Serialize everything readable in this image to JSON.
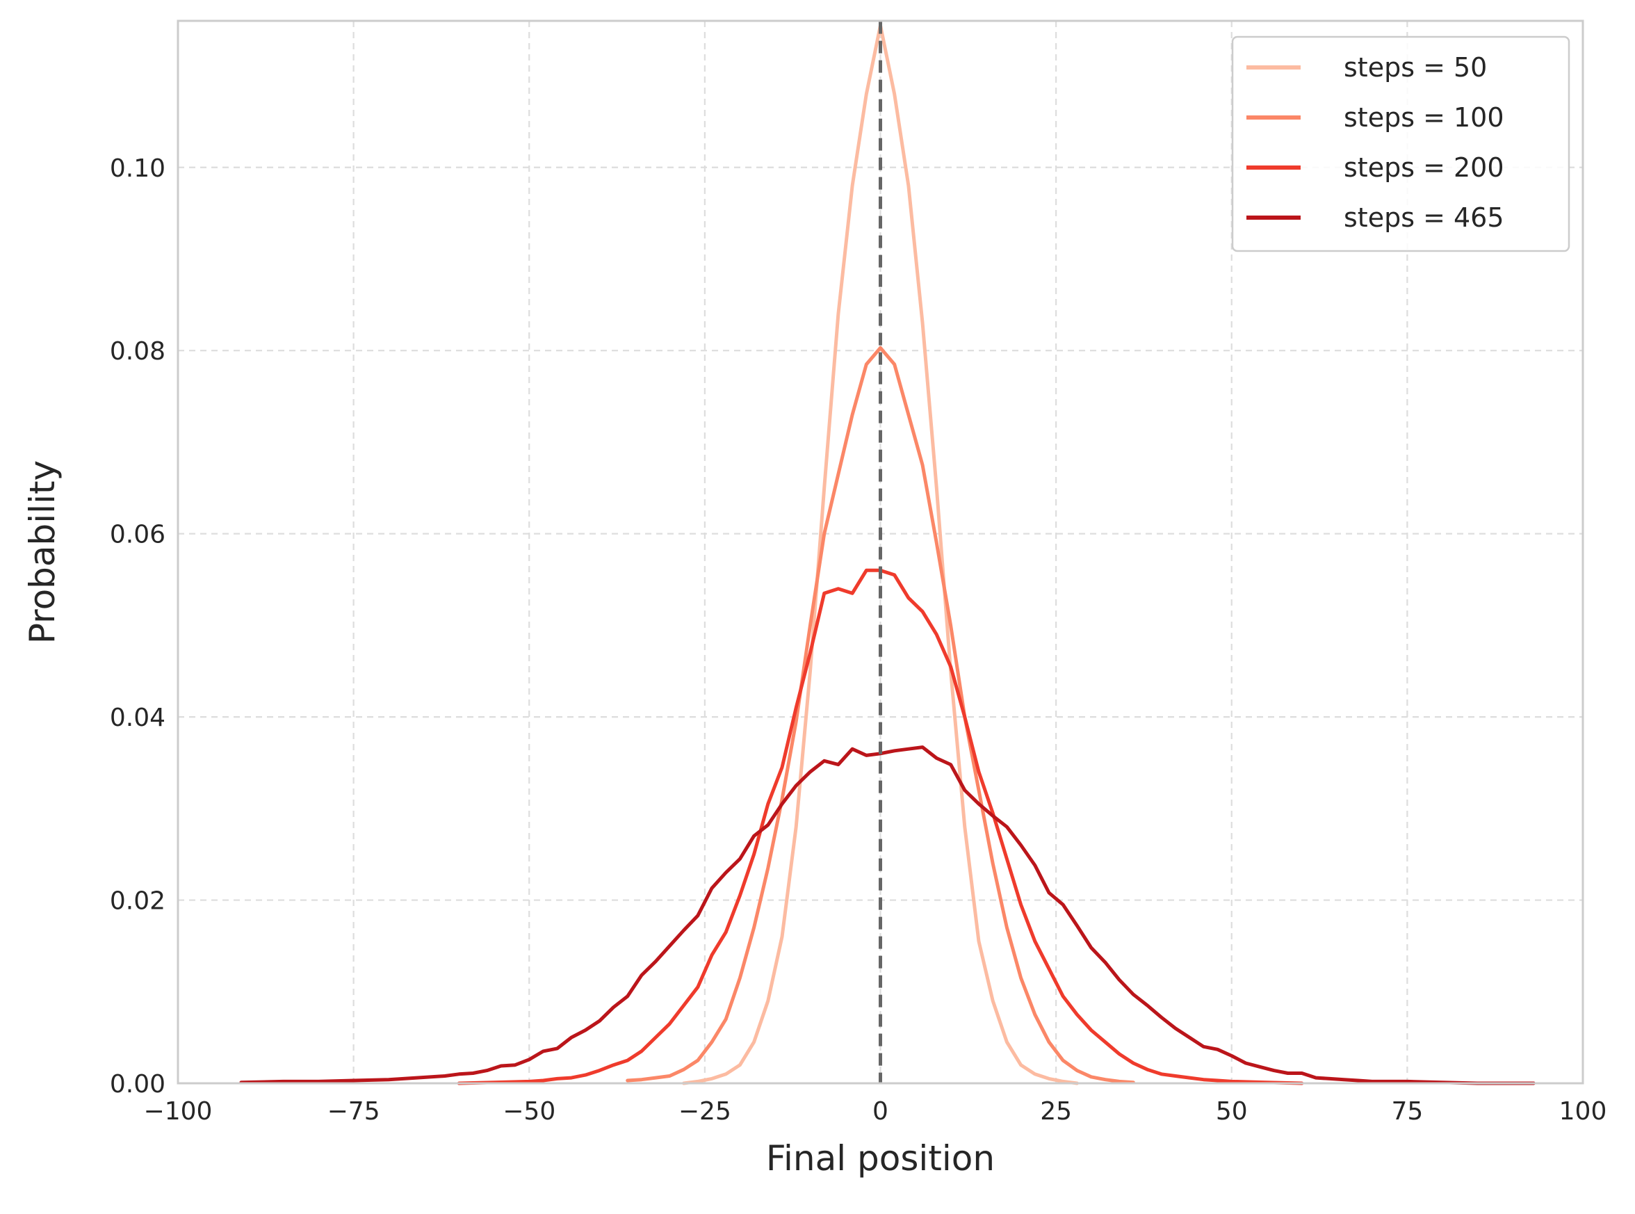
{
  "chart_data": {
    "type": "line",
    "title": "",
    "xlabel": "Final position",
    "ylabel": "Probability",
    "xlim": [
      -100,
      100
    ],
    "ylim": [
      0,
      0.116
    ],
    "xticks": [
      -100,
      -75,
      -50,
      -25,
      0,
      25,
      50,
      75,
      100
    ],
    "xtick_labels": [
      "−100",
      "−75",
      "−50",
      "−25",
      "0",
      "25",
      "50",
      "75",
      "100"
    ],
    "yticks": [
      0,
      0.02,
      0.04,
      0.06,
      0.08,
      0.1
    ],
    "ytick_labels": [
      "0.00",
      "0.02",
      "0.04",
      "0.06",
      "0.08",
      "0.10"
    ],
    "grid": true,
    "legend_position": "top-right",
    "reference_line": {
      "x": 0,
      "style": "dashed",
      "color": "#666666"
    },
    "series": [
      {
        "name": "steps = 50",
        "color": "#fcbba1",
        "x": [
          -28,
          -26,
          -24,
          -22,
          -20,
          -18,
          -16,
          -14,
          -12,
          -10,
          -8,
          -6,
          -4,
          -2,
          0,
          2,
          4,
          6,
          8,
          10,
          12,
          14,
          16,
          18,
          20,
          22,
          24,
          26,
          28
        ],
        "y": [
          0.0,
          0.0002,
          0.0005,
          0.001,
          0.002,
          0.0045,
          0.009,
          0.016,
          0.028,
          0.045,
          0.065,
          0.084,
          0.098,
          0.108,
          0.1155,
          0.108,
          0.098,
          0.083,
          0.065,
          0.045,
          0.028,
          0.0155,
          0.009,
          0.0045,
          0.002,
          0.001,
          0.0005,
          0.0002,
          0.0
        ]
      },
      {
        "name": "steps = 100",
        "color": "#fb8767",
        "x": [
          -36,
          -34,
          -32,
          -30,
          -28,
          -26,
          -24,
          -22,
          -20,
          -18,
          -16,
          -14,
          -12,
          -10,
          -8,
          -6,
          -4,
          -2,
          0,
          2,
          4,
          6,
          8,
          10,
          12,
          14,
          16,
          18,
          20,
          22,
          24,
          26,
          28,
          30,
          32,
          34,
          36
        ],
        "y": [
          0.0003,
          0.0004,
          0.0006,
          0.0008,
          0.0015,
          0.0025,
          0.0045,
          0.007,
          0.0115,
          0.017,
          0.0235,
          0.031,
          0.0395,
          0.05,
          0.06,
          0.0665,
          0.073,
          0.0785,
          0.0803,
          0.0785,
          0.073,
          0.0675,
          0.059,
          0.05,
          0.04,
          0.032,
          0.024,
          0.017,
          0.0115,
          0.0075,
          0.0045,
          0.0025,
          0.0014,
          0.0007,
          0.0004,
          0.0002,
          0.0001
        ]
      },
      {
        "name": "steps = 200",
        "color": "#ef3b2c",
        "x": [
          -60,
          -55,
          -50,
          -48,
          -46,
          -44,
          -42,
          -40,
          -38,
          -36,
          -34,
          -32,
          -30,
          -28,
          -26,
          -24,
          -22,
          -20,
          -18,
          -16,
          -14,
          -12,
          -10,
          -8,
          -6,
          -4,
          -2,
          0,
          2,
          4,
          6,
          8,
          10,
          12,
          14,
          16,
          18,
          20,
          22,
          24,
          26,
          28,
          30,
          32,
          34,
          36,
          38,
          40,
          42,
          44,
          46,
          48,
          50,
          55,
          60
        ],
        "y": [
          0.0,
          0.0001,
          0.0002,
          0.0003,
          0.0005,
          0.0006,
          0.0009,
          0.0014,
          0.002,
          0.0025,
          0.0035,
          0.005,
          0.0065,
          0.0085,
          0.0105,
          0.014,
          0.0165,
          0.0205,
          0.025,
          0.0305,
          0.0345,
          0.041,
          0.047,
          0.0535,
          0.054,
          0.0535,
          0.056,
          0.056,
          0.0555,
          0.053,
          0.0515,
          0.049,
          0.0455,
          0.04,
          0.034,
          0.0295,
          0.0245,
          0.0195,
          0.0155,
          0.0125,
          0.0095,
          0.0075,
          0.0058,
          0.0045,
          0.0032,
          0.0022,
          0.0015,
          0.001,
          0.0008,
          0.0006,
          0.0004,
          0.0003,
          0.0002,
          0.0001,
          0.0
        ]
      },
      {
        "name": "steps = 465",
        "color": "#bb151a",
        "x": [
          -91,
          -85,
          -80,
          -75,
          -70,
          -66,
          -62,
          -60,
          -58,
          -56,
          -54,
          -52,
          -50,
          -48,
          -46,
          -44,
          -42,
          -40,
          -38,
          -36,
          -34,
          -32,
          -30,
          -28,
          -26,
          -24,
          -22,
          -20,
          -18,
          -16,
          -14,
          -12,
          -10,
          -8,
          -6,
          -4,
          -2,
          0,
          2,
          4,
          6,
          8,
          10,
          12,
          14,
          16,
          18,
          20,
          22,
          24,
          26,
          28,
          30,
          32,
          34,
          36,
          38,
          40,
          42,
          44,
          46,
          48,
          50,
          52,
          54,
          56,
          58,
          60,
          62,
          64,
          66,
          68,
          70,
          75,
          80,
          85,
          93
        ],
        "y": [
          0.0001,
          0.0002,
          0.0002,
          0.0003,
          0.0004,
          0.0006,
          0.0008,
          0.001,
          0.0011,
          0.0014,
          0.0019,
          0.002,
          0.0026,
          0.0035,
          0.0038,
          0.005,
          0.0058,
          0.0068,
          0.0083,
          0.0095,
          0.0118,
          0.0133,
          0.015,
          0.0167,
          0.0183,
          0.0213,
          0.023,
          0.0245,
          0.027,
          0.0282,
          0.0305,
          0.0325,
          0.034,
          0.0352,
          0.0348,
          0.0365,
          0.0358,
          0.036,
          0.0363,
          0.0365,
          0.0367,
          0.0355,
          0.0348,
          0.032,
          0.0305,
          0.0292,
          0.028,
          0.026,
          0.0238,
          0.0208,
          0.0195,
          0.0172,
          0.0148,
          0.0132,
          0.0113,
          0.0097,
          0.0085,
          0.0072,
          0.006,
          0.005,
          0.004,
          0.0037,
          0.003,
          0.0022,
          0.0018,
          0.0014,
          0.0011,
          0.0011,
          0.0006,
          0.0005,
          0.0004,
          0.0003,
          0.0002,
          0.0002,
          0.0001,
          0.0,
          0.0
        ]
      }
    ]
  }
}
